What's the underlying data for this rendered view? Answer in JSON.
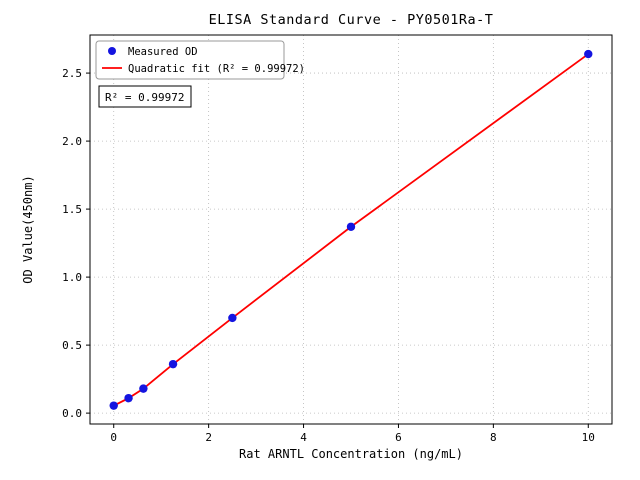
{
  "chart_data": {
    "type": "scatter",
    "title": "ELISA Standard Curve - PY0501Ra-T",
    "xlabel": "Rat ARNTL Concentration (ng/mL)",
    "ylabel": "OD Value(450nm)",
    "xlim": [
      -0.5,
      10.5
    ],
    "ylim": [
      -0.08,
      2.78
    ],
    "x_ticks": [
      0,
      2,
      4,
      6,
      8,
      10
    ],
    "x_tick_labels": [
      "0",
      "2",
      "4",
      "6",
      "8",
      "10"
    ],
    "y_ticks": [
      0.0,
      0.5,
      1.0,
      1.5,
      2.0,
      2.5
    ],
    "y_tick_labels": [
      "0.0",
      "0.5",
      "1.0",
      "1.5",
      "2.0",
      "2.5"
    ],
    "grid": true,
    "legend_position": "upper-left",
    "series": [
      {
        "name": "Measured OD",
        "type": "scatter",
        "color": "#1414e0",
        "x": [
          0,
          0.3125,
          0.625,
          1.25,
          2.5,
          5,
          10
        ],
        "y": [
          0.055,
          0.11,
          0.18,
          0.36,
          0.7,
          1.37,
          2.64
        ]
      },
      {
        "name": "Quadratic fit (R² = 0.99972)",
        "type": "line",
        "color": "#ff0000"
      }
    ],
    "annotation": "R² = 0.99972",
    "grid_color": "#b8b8b8",
    "background_color": "#ffffff"
  }
}
